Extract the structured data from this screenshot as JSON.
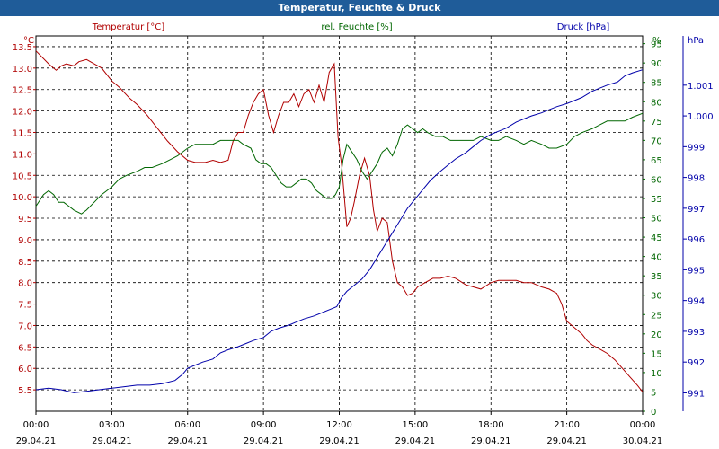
{
  "title": "Temperatur, Feuchte & Druck",
  "chart_data": {
    "type": "line",
    "title": "Temperatur, Feuchte & Druck",
    "x_ticks": [
      {
        "hours": 0,
        "time": "00:00",
        "date": "29.04.21"
      },
      {
        "hours": 3,
        "time": "03:00",
        "date": "29.04.21"
      },
      {
        "hours": 6,
        "time": "06:00",
        "date": "29.04.21"
      },
      {
        "hours": 9,
        "time": "09:00",
        "date": "29.04.21"
      },
      {
        "hours": 12,
        "time": "12:00",
        "date": "29.04.21"
      },
      {
        "hours": 15,
        "time": "15:00",
        "date": "29.04.21"
      },
      {
        "hours": 18,
        "time": "18:00",
        "date": "29.04.21"
      },
      {
        "hours": 21,
        "time": "21:00",
        "date": "29.04.21"
      },
      {
        "hours": 24,
        "time": "00:00",
        "date": "30.04.21"
      }
    ],
    "xlim_hours": [
      0,
      24
    ],
    "grid": true,
    "axes": {
      "temperature": {
        "label": "Temperatur [°C]",
        "unit": "°C",
        "color": "#b00000",
        "range": [
          5.0,
          13.75
        ],
        "ticks": [
          "5.5",
          "6.0",
          "6.5",
          "7.0",
          "7.5",
          "8.0",
          "8.5",
          "9.0",
          "9.5",
          "10.0",
          "10.5",
          "11.0",
          "11.5",
          "12.0",
          "12.5",
          "13.0",
          "13.5"
        ]
      },
      "humidity": {
        "label": "rel. Feuchte [%]",
        "unit": "%",
        "color": "#006600",
        "range": [
          0,
          97
        ],
        "ticks": [
          "0",
          "5",
          "10",
          "15",
          "20",
          "25",
          "30",
          "35",
          "40",
          "45",
          "50",
          "55",
          "60",
          "65",
          "70",
          "75",
          "80",
          "85",
          "90",
          "95"
        ]
      },
      "pressure": {
        "label": "Druck [hPa]",
        "unit": "hPa",
        "color": "#0000aa",
        "range": [
          990.4,
          1002.6
        ],
        "ticks": [
          "991",
          "992",
          "993",
          "994",
          "995",
          "996",
          "997",
          "998",
          "999",
          "1.000",
          "1.001"
        ]
      }
    },
    "series": [
      {
        "name": "Temperatur",
        "axis": "temperature",
        "color": "#b00000",
        "x": [
          0,
          0.5,
          0.8,
          1.0,
          1.2,
          1.5,
          1.7,
          2.0,
          2.3,
          2.6,
          3.0,
          3.3,
          3.7,
          4.0,
          4.4,
          4.8,
          5.2,
          5.6,
          6.0,
          6.3,
          6.7,
          7.0,
          7.3,
          7.6,
          7.8,
          8.0,
          8.2,
          8.4,
          8.6,
          8.8,
          9.0,
          9.2,
          9.4,
          9.6,
          9.8,
          10.0,
          10.2,
          10.4,
          10.6,
          10.8,
          11.0,
          11.2,
          11.4,
          11.6,
          11.8,
          11.95,
          12.1,
          12.3,
          12.45,
          12.6,
          12.8,
          13.0,
          13.2,
          13.35,
          13.5,
          13.7,
          13.9,
          14.1,
          14.3,
          14.5,
          14.7,
          14.9,
          15.1,
          15.4,
          15.7,
          16.0,
          16.3,
          16.6,
          17.0,
          17.3,
          17.6,
          18.0,
          18.3,
          18.6,
          19.0,
          19.3,
          19.6,
          20.0,
          20.3,
          20.6,
          20.8,
          21.0,
          21.2,
          21.4,
          21.6,
          21.8,
          22.0,
          22.3,
          22.6,
          22.9,
          23.2,
          23.5,
          23.8,
          24.0
        ],
        "values": [
          13.4,
          13.1,
          12.95,
          13.05,
          13.1,
          13.05,
          13.15,
          13.2,
          13.1,
          13.0,
          12.7,
          12.55,
          12.3,
          12.15,
          11.9,
          11.6,
          11.3,
          11.05,
          10.85,
          10.8,
          10.8,
          10.85,
          10.8,
          10.85,
          11.3,
          11.5,
          11.5,
          11.9,
          12.2,
          12.4,
          12.5,
          11.9,
          11.5,
          11.9,
          12.2,
          12.2,
          12.4,
          12.1,
          12.4,
          12.5,
          12.2,
          12.6,
          12.2,
          12.9,
          13.1,
          11.4,
          10.7,
          9.3,
          9.5,
          9.9,
          10.5,
          10.9,
          10.5,
          9.7,
          9.2,
          9.5,
          9.4,
          8.5,
          8.0,
          7.9,
          7.7,
          7.75,
          7.9,
          8.0,
          8.1,
          8.1,
          8.15,
          8.1,
          7.95,
          7.9,
          7.85,
          8.0,
          8.05,
          8.05,
          8.05,
          8.0,
          8.0,
          7.9,
          7.85,
          7.75,
          7.5,
          7.1,
          7.0,
          6.9,
          6.8,
          6.65,
          6.55,
          6.45,
          6.35,
          6.2,
          6.0,
          5.8,
          5.6,
          5.45
        ]
      },
      {
        "name": "rel. Feuchte",
        "axis": "humidity",
        "color": "#006600",
        "x": [
          0,
          0.3,
          0.5,
          0.7,
          0.9,
          1.1,
          1.3,
          1.5,
          1.8,
          2.0,
          2.3,
          2.6,
          3.0,
          3.3,
          3.6,
          4.0,
          4.3,
          4.6,
          5.0,
          5.3,
          5.6,
          6.0,
          6.3,
          6.6,
          7.0,
          7.3,
          7.6,
          8.0,
          8.2,
          8.5,
          8.7,
          8.9,
          9.1,
          9.3,
          9.5,
          9.7,
          9.9,
          10.1,
          10.3,
          10.5,
          10.7,
          10.9,
          11.1,
          11.3,
          11.5,
          11.7,
          11.85,
          12.0,
          12.15,
          12.3,
          12.5,
          12.7,
          12.9,
          13.1,
          13.3,
          13.5,
          13.7,
          13.9,
          14.1,
          14.3,
          14.5,
          14.7,
          14.9,
          15.1,
          15.3,
          15.5,
          15.8,
          16.1,
          16.4,
          16.7,
          17.0,
          17.3,
          17.6,
          18.0,
          18.3,
          18.6,
          19.0,
          19.3,
          19.6,
          20.0,
          20.3,
          20.6,
          21.0,
          21.3,
          21.6,
          22.0,
          22.3,
          22.6,
          23.0,
          23.3,
          23.6,
          24.0
        ],
        "values": [
          53,
          56,
          57,
          56,
          54,
          54,
          53,
          52,
          51,
          52,
          54,
          56,
          58,
          60,
          61,
          62,
          63,
          63,
          64,
          65,
          66,
          68,
          69,
          69,
          69,
          70,
          70,
          70,
          69,
          68,
          65,
          64,
          64,
          63,
          61,
          59,
          58,
          58,
          59,
          60,
          60,
          59,
          57,
          56,
          55,
          55,
          56,
          58,
          65,
          69,
          67,
          65,
          62,
          60,
          62,
          64,
          67,
          68,
          66,
          69,
          73,
          74,
          73,
          72,
          73,
          72,
          71,
          71,
          70,
          70,
          70,
          70,
          71,
          70,
          70,
          71,
          70,
          69,
          70,
          69,
          68,
          68,
          69,
          71,
          72,
          73,
          74,
          75,
          75,
          75,
          76,
          77
        ]
      },
      {
        "name": "Druck",
        "axis": "pressure",
        "color": "#0000aa",
        "x": [
          0,
          0.5,
          1.0,
          1.5,
          2.0,
          2.5,
          3.0,
          3.5,
          4.0,
          4.5,
          5.0,
          5.5,
          5.8,
          6.0,
          6.3,
          6.6,
          7.0,
          7.3,
          7.6,
          8.0,
          8.3,
          8.6,
          9.0,
          9.3,
          9.6,
          10.0,
          10.3,
          10.6,
          11.0,
          11.3,
          11.6,
          11.9,
          12.1,
          12.3,
          12.6,
          12.9,
          13.2,
          13.5,
          13.8,
          14.1,
          14.4,
          14.7,
          15.0,
          15.3,
          15.6,
          16.0,
          16.3,
          16.6,
          17.0,
          17.3,
          17.6,
          18.0,
          18.3,
          18.6,
          19.0,
          19.3,
          19.6,
          20.0,
          20.3,
          20.6,
          21.0,
          21.3,
          21.6,
          22.0,
          22.3,
          22.6,
          23.0,
          23.3,
          23.6,
          24.0
        ],
        "values": [
          991.1,
          991.15,
          991.1,
          991.0,
          991.05,
          991.1,
          991.15,
          991.2,
          991.25,
          991.25,
          991.3,
          991.4,
          991.6,
          991.8,
          991.9,
          992.0,
          992.1,
          992.3,
          992.4,
          992.5,
          992.6,
          992.7,
          992.8,
          993.0,
          993.1,
          993.2,
          993.3,
          993.4,
          993.5,
          993.6,
          993.7,
          993.8,
          994.1,
          994.3,
          994.5,
          994.7,
          995.0,
          995.4,
          995.8,
          996.2,
          996.6,
          997.0,
          997.3,
          997.6,
          997.9,
          998.2,
          998.4,
          998.6,
          998.8,
          999.0,
          999.2,
          999.4,
          999.5,
          999.6,
          999.8,
          999.9,
          1000.0,
          1000.1,
          1000.2,
          1000.3,
          1000.4,
          1000.5,
          1000.6,
          1000.8,
          1000.9,
          1001.0,
          1001.1,
          1001.3,
          1001.4,
          1001.5
        ]
      }
    ]
  }
}
